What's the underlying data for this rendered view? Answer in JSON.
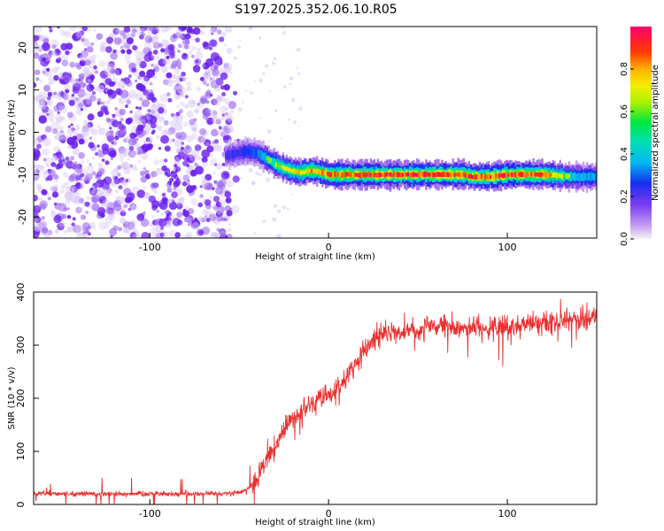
{
  "title": "S197.2025.352.06.10.R05",
  "colors": {
    "snr_line": "#e8312f",
    "noise": "#7a3df0",
    "axis": "#000000"
  },
  "chart_data": [
    {
      "type": "heatmap",
      "xlabel": "Height of straight line (km)",
      "ylabel": "Frequency (Hz)",
      "xlim": [
        -165,
        150
      ],
      "ylim": [
        -25,
        25
      ],
      "x_ticks": [
        -100,
        0,
        100
      ],
      "y_ticks": [
        20,
        10,
        0,
        -10,
        -20
      ],
      "colorbar": {
        "label": "Normalized spectral amplitude",
        "range": [
          0,
          1
        ],
        "ticks": [
          "0.0",
          "0.2",
          "0.4",
          "0.6",
          "0.8"
        ],
        "tick_values": [
          0,
          0.2,
          0.4,
          0.6,
          0.8
        ]
      },
      "noise_region_x": [
        -165,
        -55
      ],
      "signal_track": {
        "x": [
          -58,
          -52,
          -46,
          -40,
          -34,
          -28,
          -22,
          -16,
          -10,
          -4,
          0,
          10,
          20,
          40,
          60,
          75,
          80,
          90,
          100,
          120,
          135,
          150
        ],
        "y": [
          -5.5,
          -5,
          -4.5,
          -5,
          -6.5,
          -8,
          -9,
          -9.5,
          -9,
          -9.5,
          -10,
          -10,
          -10,
          -10,
          -10,
          -10,
          -10.5,
          -10.5,
          -10,
          -10,
          -10.5,
          -10.5
        ],
        "amplitude": [
          0.3,
          0.35,
          0.4,
          0.45,
          0.6,
          0.7,
          0.75,
          0.8,
          0.85,
          0.85,
          0.9,
          0.9,
          0.95,
          0.95,
          0.95,
          0.9,
          0.95,
          0.9,
          0.95,
          0.9,
          0.6,
          0.5
        ]
      }
    },
    {
      "type": "line",
      "xlabel": "Height of straight line (km)",
      "ylabel": "SNR (10 * v/v)",
      "xlim": [
        -165,
        150
      ],
      "ylim": [
        0,
        400
      ],
      "x_ticks": [
        -100,
        0,
        100
      ],
      "y_ticks": [
        0,
        100,
        200,
        300,
        400
      ],
      "series": [
        {
          "x": [
            -165,
            -140,
            -120,
            -100,
            -80,
            -60,
            -50,
            -45,
            -40,
            -35,
            -30,
            -25,
            -20,
            -15,
            -10,
            -5,
            0,
            5,
            10,
            15,
            20,
            25,
            30,
            40,
            50,
            60,
            70,
            80,
            90,
            100,
            110,
            120,
            130,
            140,
            150
          ],
          "y": [
            20,
            20,
            20,
            20,
            20,
            20,
            22,
            30,
            50,
            80,
            110,
            140,
            160,
            175,
            190,
            200,
            205,
            220,
            240,
            265,
            290,
            310,
            320,
            325,
            330,
            335,
            330,
            335,
            330,
            335,
            340,
            340,
            345,
            350,
            355
          ]
        }
      ]
    }
  ]
}
